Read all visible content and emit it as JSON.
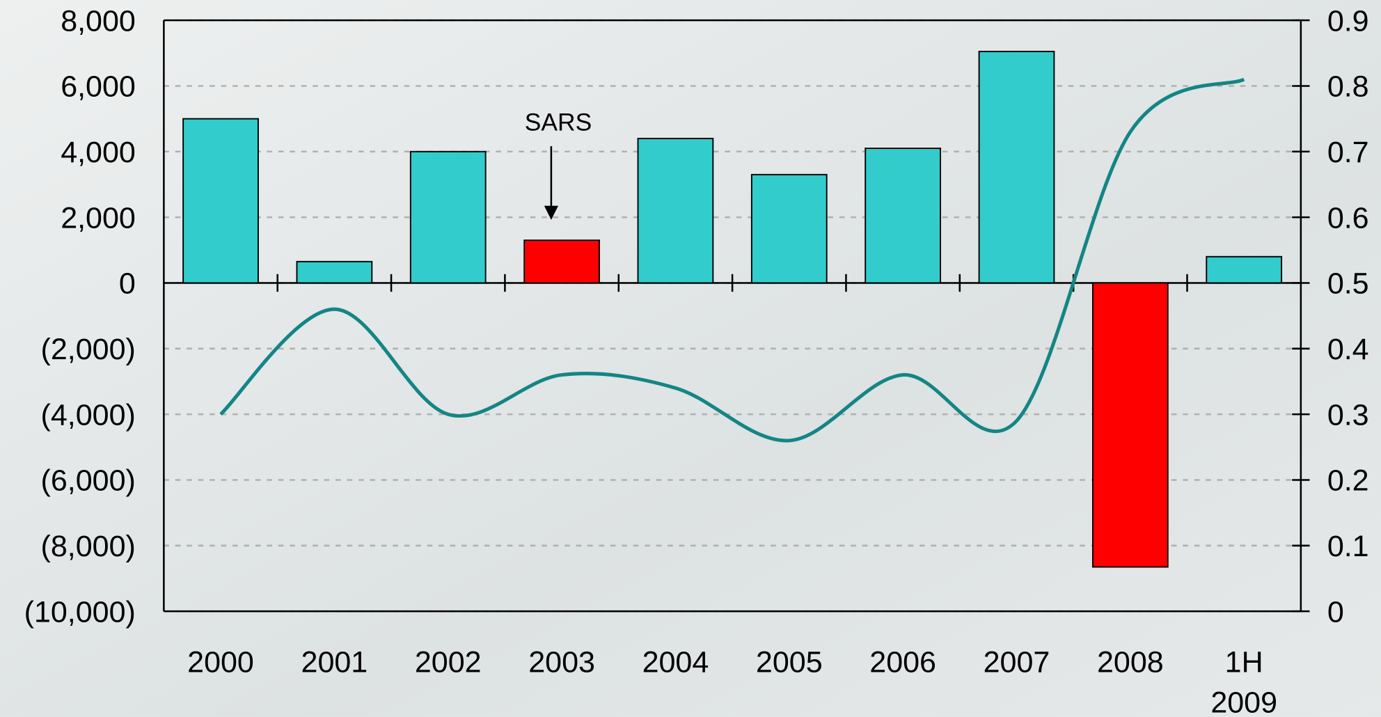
{
  "chart_data": {
    "type": "bar",
    "categories": [
      "2000",
      "2001",
      "2002",
      "2003",
      "2004",
      "2005",
      "2006",
      "2007",
      "2008",
      "1H 2009"
    ],
    "series": [
      {
        "type": "bar",
        "color": "#33CCCC",
        "colors": [
          "#33CCCC",
          "#33CCCC",
          "#33CCCC",
          "#FF0000",
          "#33CCCC",
          "#33CCCC",
          "#33CCCC",
          "#33CCCC",
          "#FF0000",
          "#33CCCC"
        ],
        "values": [
          5000,
          650,
          4000,
          1300,
          4400,
          3300,
          4100,
          7050,
          -8650,
          800
        ]
      },
      {
        "type": "line",
        "axis": "y2",
        "color": "#148585",
        "values": [
          0.3,
          0.46,
          0.3,
          0.36,
          0.34,
          0.26,
          0.36,
          0.29,
          0.73,
          0.81
        ]
      }
    ],
    "ylim": [
      -10000,
      8000
    ],
    "yticks": [
      {
        "value": -10000,
        "label": "(10,000)"
      },
      {
        "value": -8000,
        "label": "(8,000)"
      },
      {
        "value": -6000,
        "label": "(6,000)"
      },
      {
        "value": -4000,
        "label": "(4,000)"
      },
      {
        "value": -2000,
        "label": "(2,000)"
      },
      0,
      {
        "value": 2000,
        "label": "2,000"
      },
      {
        "value": 4000,
        "label": "4,000"
      },
      {
        "value": 6000,
        "label": "6,000"
      },
      {
        "value": 8000,
        "label": "8,000"
      }
    ],
    "y2lim": [
      0,
      0.9
    ],
    "y2ticks": [
      0,
      0.1,
      0.2,
      0.3,
      0.4,
      0.5,
      0.6,
      0.7,
      0.8,
      0.9
    ],
    "grid": true,
    "annotations": [
      {
        "text": "SARS",
        "target": "2003"
      }
    ]
  }
}
